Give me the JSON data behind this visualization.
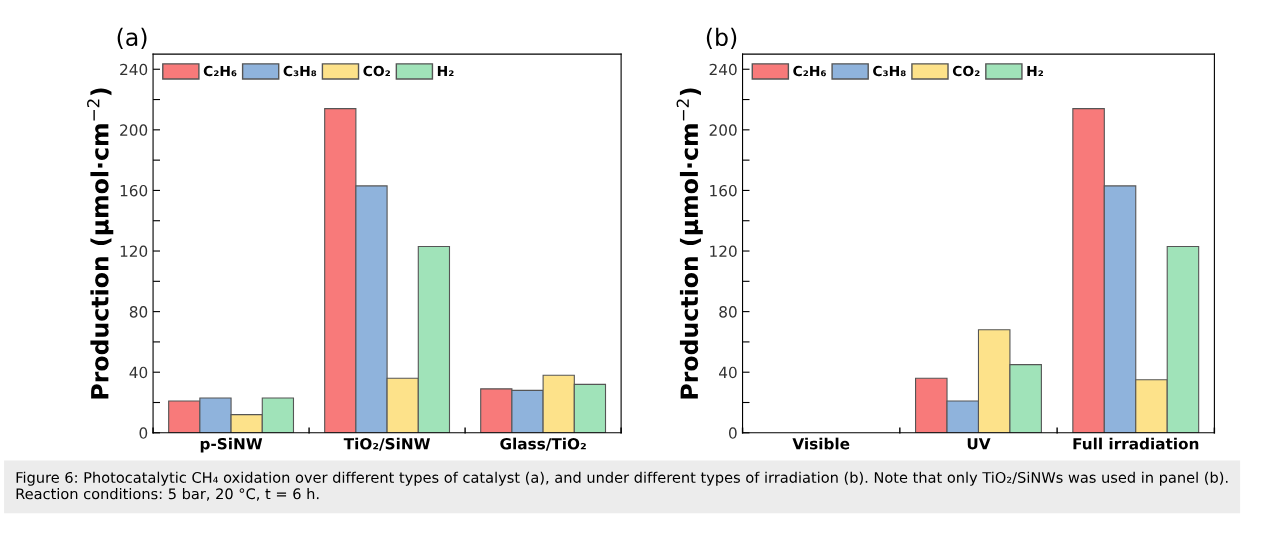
{
  "chart_data": [
    {
      "type": "bar",
      "title": "(a)",
      "ylabel": "Production (μmol·cm$^{−2}$)",
      "categories": [
        "p-SiNW",
        "TiO₂/SiNW",
        "Glass/TiO₂"
      ],
      "series": [
        {
          "name": "C₂H₆",
          "color": "#f87a7a",
          "values": [
            21,
            214,
            29
          ]
        },
        {
          "name": "C₃H₈",
          "color": "#8fb3dc",
          "values": [
            23,
            163,
            28
          ]
        },
        {
          "name": "CO₂",
          "color": "#fde28a",
          "values": [
            12,
            36,
            38
          ]
        },
        {
          "name": "H₂",
          "color": "#a0e3b9",
          "values": [
            23,
            123,
            32
          ]
        }
      ],
      "ylim": [
        0,
        250
      ],
      "yticks": [
        0,
        {
          "value": 20,
          "label": null
        },
        40,
        {
          "value": 60,
          "label": null
        },
        80,
        {
          "value": 100,
          "label": null
        },
        120,
        {
          "value": 140,
          "label": null
        },
        160,
        {
          "value": 180,
          "label": null
        },
        200,
        {
          "value": 220,
          "label": null
        },
        240
      ],
      "legend": "top left",
      "grid": false
    },
    {
      "type": "bar",
      "title": "(b)",
      "ylabel": "Production (μmol·cm$^{−2}$)",
      "categories": [
        "Visible",
        "UV",
        "Full irradiation"
      ],
      "series": [
        {
          "name": "C₂H₆",
          "color": "#f87a7a",
          "values": [
            null,
            36,
            214
          ]
        },
        {
          "name": "C₃H₈",
          "color": "#8fb3dc",
          "values": [
            null,
            21,
            163
          ]
        },
        {
          "name": "CO₂",
          "color": "#fde28a",
          "values": [
            null,
            68,
            35
          ]
        },
        {
          "name": "H₂",
          "color": "#a0e3b9",
          "values": [
            null,
            45,
            123
          ]
        }
      ],
      "ylim": [
        0,
        250
      ],
      "yticks": [
        0,
        {
          "value": 20,
          "label": null
        },
        40,
        {
          "value": 60,
          "label": null
        },
        80,
        {
          "value": 100,
          "label": null
        },
        120,
        {
          "value": 140,
          "label": null
        },
        160,
        {
          "value": 180,
          "label": null
        },
        200,
        {
          "value": 220,
          "label": null
        },
        240
      ],
      "legend": "top left",
      "grid": false,
      "annotations": [
        "Figure 6: Photocatalytic CH₄ oxidation over different types of catalyst (a), and under different types of irradiation (b). Note that only TiO₂/SiNWs was used in panel (b). Reaction conditions: 5 bar, 20 °C, t = 6 h."
      ]
    }
  ]
}
